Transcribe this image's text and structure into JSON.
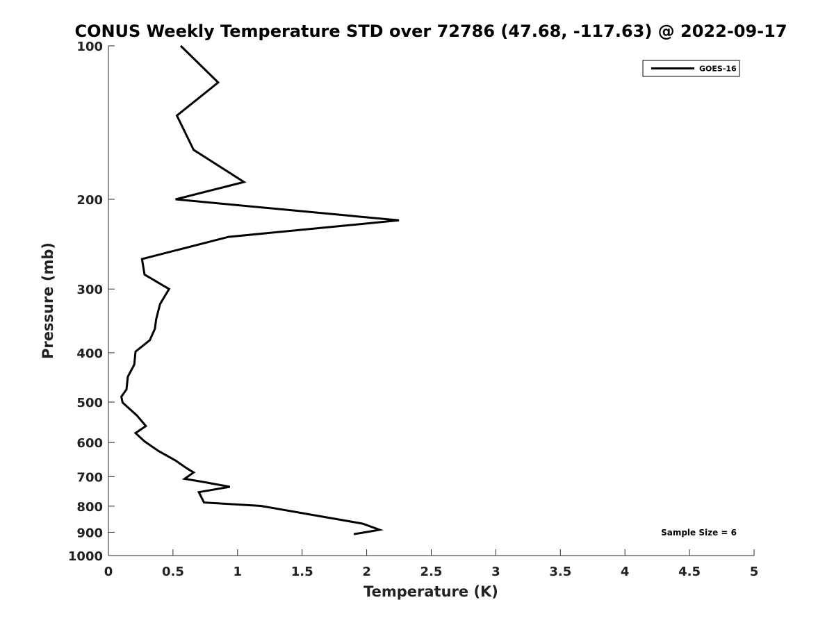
{
  "chart_data": {
    "type": "line",
    "title": "CONUS Weekly Temperature STD over 72786 (47.68, -117.63) @ 2022-09-17",
    "xlabel": "Temperature (K)",
    "ylabel": "Pressure (mb)",
    "xlim": [
      0,
      5
    ],
    "ylim": [
      100,
      1000
    ],
    "y_scale": "log",
    "y_reversed": true,
    "grid": false,
    "legend_position": "top-right",
    "x_ticks": [
      0,
      0.5,
      1,
      1.5,
      2,
      2.5,
      3,
      3.5,
      4,
      4.5,
      5
    ],
    "x_tick_labels": [
      "0",
      "0.5",
      "1",
      "1.5",
      "2",
      "2.5",
      "3",
      "3.5",
      "4",
      "4.5",
      "5"
    ],
    "y_ticks": [
      100,
      200,
      300,
      400,
      500,
      600,
      700,
      800,
      900,
      1000
    ],
    "y_tick_labels": [
      "100",
      "200",
      "300",
      "400",
      "500",
      "600",
      "700",
      "800",
      "900",
      "1000"
    ],
    "series": [
      {
        "name": "GOES-16",
        "color": "#000000",
        "points": [
          [
            0.56,
            100
          ],
          [
            0.85,
            118
          ],
          [
            0.53,
            137
          ],
          [
            0.66,
            160
          ],
          [
            1.05,
            185
          ],
          [
            0.52,
            200
          ],
          [
            2.25,
            220
          ],
          [
            0.93,
            237
          ],
          [
            0.26,
            262
          ],
          [
            0.28,
            281
          ],
          [
            0.47,
            300
          ],
          [
            0.4,
            321
          ],
          [
            0.37,
            344
          ],
          [
            0.36,
            359
          ],
          [
            0.32,
            378
          ],
          [
            0.21,
            398
          ],
          [
            0.2,
            422
          ],
          [
            0.15,
            446
          ],
          [
            0.14,
            472
          ],
          [
            0.1,
            488
          ],
          [
            0.11,
            501
          ],
          [
            0.22,
            531
          ],
          [
            0.29,
            557
          ],
          [
            0.21,
            575
          ],
          [
            0.28,
            597
          ],
          [
            0.39,
            624
          ],
          [
            0.52,
            651
          ],
          [
            0.61,
            675
          ],
          [
            0.66,
            687
          ],
          [
            0.59,
            707
          ],
          [
            0.72,
            716
          ],
          [
            0.94,
            733
          ],
          [
            0.7,
            751
          ],
          [
            0.74,
            787
          ],
          [
            1.18,
            799
          ],
          [
            1.97,
            866
          ],
          [
            2.1,
            890
          ],
          [
            2.0,
            899
          ],
          [
            1.9,
            908
          ]
        ]
      }
    ],
    "annotation": "Sample Size = 6"
  }
}
